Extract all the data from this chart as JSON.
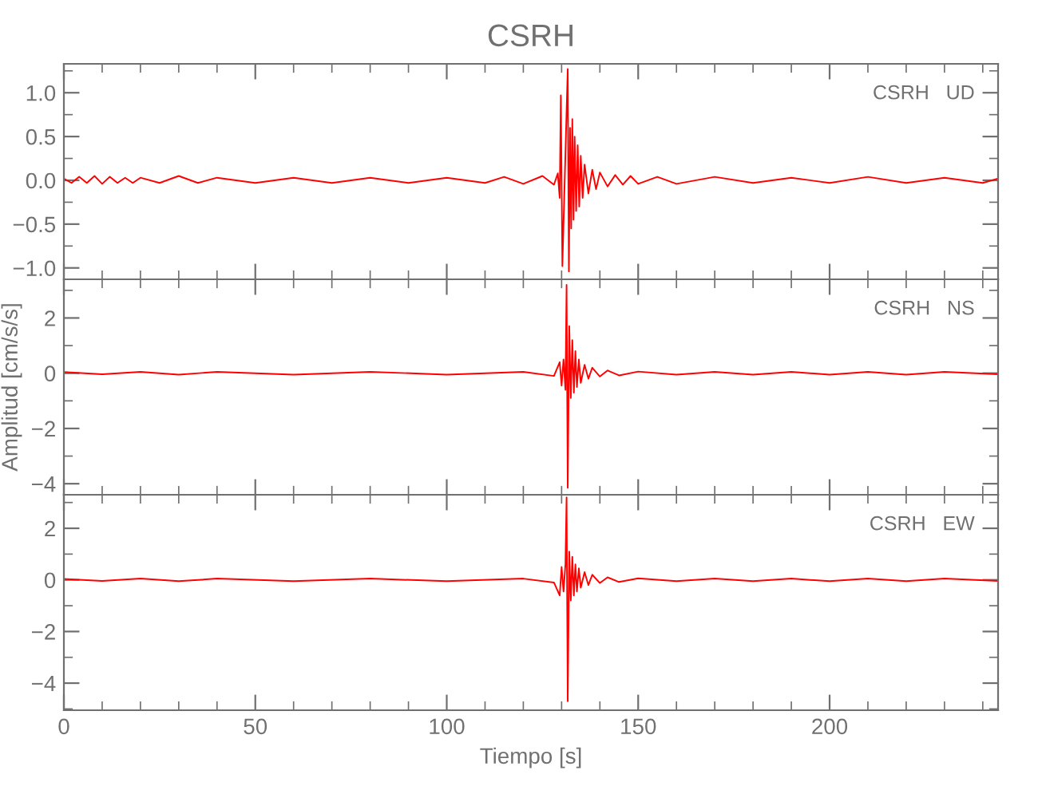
{
  "chart_data": [
    {
      "type": "line",
      "title": "CSRH",
      "annotations": [
        "CSRH   UD"
      ],
      "xlim": [
        0,
        244
      ],
      "xticks": [
        0,
        50,
        100,
        150,
        200
      ],
      "ylim": [
        -1.13,
        1.33
      ],
      "yticks": [
        {
          "value": -1.0,
          "label": "−1.0"
        },
        {
          "value": -0.5,
          "label": "−0.5"
        },
        {
          "value": 0.0,
          "label": "0.0"
        },
        {
          "value": 0.5,
          "label": "0.5"
        },
        {
          "value": 1.0,
          "label": "1.0"
        }
      ],
      "tick_labels": "y",
      "series": [
        {
          "color": "#ff0000",
          "x": [
            0,
            2,
            4,
            6,
            8,
            10,
            12,
            14,
            16,
            18,
            20,
            25,
            30,
            35,
            40,
            50,
            60,
            70,
            80,
            90,
            100,
            110,
            115,
            120,
            125,
            128,
            129,
            129.5,
            129.8,
            130.2,
            131.6,
            131.9,
            132.2,
            132.5,
            132.8,
            133.1,
            133.4,
            133.8,
            134.2,
            134.6,
            135,
            135.5,
            136,
            137,
            138,
            139,
            140,
            142,
            144,
            146,
            148,
            150,
            155,
            160,
            170,
            180,
            190,
            200,
            210,
            220,
            230,
            240,
            244
          ],
          "values": [
            0.02,
            -0.03,
            0.04,
            -0.03,
            0.05,
            -0.04,
            0.04,
            -0.03,
            0.03,
            -0.03,
            0.03,
            -0.03,
            0.05,
            -0.03,
            0.03,
            -0.03,
            0.03,
            -0.03,
            0.03,
            -0.03,
            0.03,
            -0.03,
            0.04,
            -0.04,
            0.05,
            -0.05,
            0.08,
            -0.2,
            0.97,
            -0.98,
            1.27,
            -1.04,
            0.6,
            -0.55,
            0.7,
            -0.45,
            0.5,
            -0.35,
            0.4,
            -0.3,
            0.28,
            -0.2,
            0.18,
            -0.15,
            0.12,
            -0.1,
            0.09,
            -0.07,
            0.06,
            -0.05,
            0.05,
            -0.04,
            0.04,
            -0.04,
            0.04,
            -0.03,
            0.03,
            -0.03,
            0.04,
            -0.03,
            0.03,
            -0.03,
            0.02
          ]
        }
      ]
    },
    {
      "type": "line",
      "ylabel": "Amplitud [cm/s/s]",
      "annotations": [
        "CSRH   NS"
      ],
      "xlim": [
        0,
        244
      ],
      "xticks": [
        0,
        50,
        100,
        150,
        200
      ],
      "ylim": [
        -4.4,
        3.4
      ],
      "yticks": [
        {
          "value": -4,
          "label": "−4"
        },
        {
          "value": -2,
          "label": "−2"
        },
        0,
        2
      ],
      "tick_labels": "y",
      "series": [
        {
          "color": "#ff0000",
          "x": [
            0,
            10,
            20,
            30,
            40,
            60,
            80,
            100,
            120,
            128,
            129.5,
            130,
            130.5,
            131,
            131.3,
            131.6,
            132,
            132.4,
            132.8,
            133.2,
            133.6,
            134,
            134.5,
            135,
            136,
            137,
            138,
            140,
            142,
            145,
            150,
            160,
            170,
            180,
            190,
            200,
            210,
            220,
            230,
            244
          ],
          "values": [
            0.04,
            -0.04,
            0.05,
            -0.05,
            0.05,
            -0.05,
            0.05,
            -0.05,
            0.05,
            -0.1,
            0.4,
            -0.45,
            0.5,
            -0.6,
            3.2,
            -4.15,
            1.7,
            -0.9,
            1.2,
            -0.7,
            0.8,
            -0.5,
            0.5,
            -0.35,
            0.3,
            -0.2,
            0.2,
            -0.12,
            0.1,
            -0.08,
            0.06,
            -0.05,
            0.05,
            -0.05,
            0.05,
            -0.05,
            0.05,
            -0.05,
            0.05,
            -0.04
          ]
        }
      ]
    },
    {
      "type": "line",
      "xlabel": "Tiempo [s]",
      "annotations": [
        "CSRH   EW"
      ],
      "xlim": [
        0,
        244
      ],
      "xticks": [
        0,
        50,
        100,
        150,
        200
      ],
      "ylim": [
        -5.05,
        3.3
      ],
      "yticks": [
        {
          "value": -4,
          "label": "−4"
        },
        {
          "value": -2,
          "label": "−2"
        },
        0,
        2
      ],
      "series": [
        {
          "color": "#ff0000",
          "x": [
            0,
            10,
            20,
            30,
            40,
            60,
            80,
            100,
            120,
            128,
            129.5,
            130,
            130.5,
            131,
            131.3,
            131.6,
            132,
            132.4,
            132.8,
            133.2,
            133.6,
            134,
            134.5,
            135,
            136,
            137,
            138,
            140,
            142,
            145,
            150,
            160,
            170,
            180,
            190,
            200,
            210,
            220,
            230,
            244
          ],
          "values": [
            0.04,
            -0.04,
            0.05,
            -0.05,
            0.05,
            -0.05,
            0.05,
            -0.05,
            0.05,
            -0.1,
            -0.6,
            0.5,
            -0.45,
            0.6,
            3.2,
            -4.7,
            1.1,
            -0.8,
            0.9,
            -0.6,
            0.6,
            -0.45,
            0.45,
            -0.3,
            0.3,
            -0.2,
            0.2,
            -0.12,
            0.1,
            -0.08,
            0.06,
            -0.05,
            0.05,
            -0.05,
            0.05,
            -0.05,
            0.05,
            -0.05,
            0.05,
            -0.04
          ]
        }
      ]
    }
  ]
}
